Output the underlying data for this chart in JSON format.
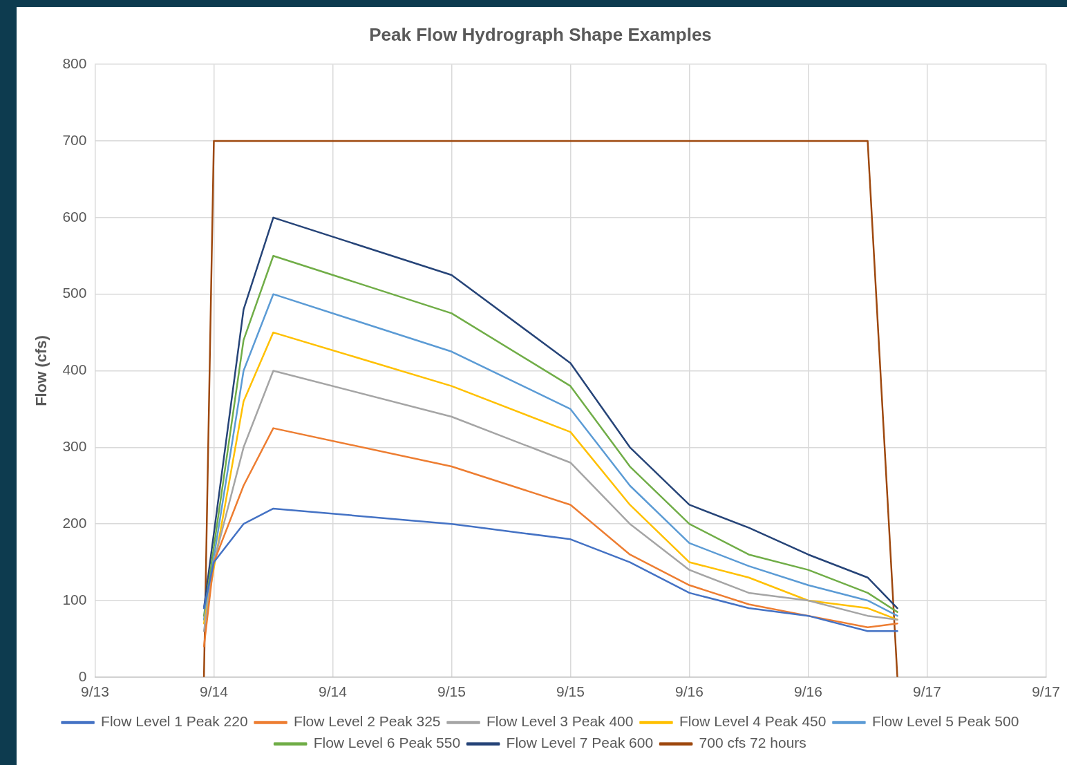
{
  "chart_data": {
    "type": "line",
    "title": "Peak Flow Hydrograph Shape Examples",
    "ylabel": "Flow (cfs)",
    "x": [
      "--09-13T23:00",
      "--09-14T00:00",
      "--09-14T03:00",
      "--09-14T06:00",
      "--09-15T00:00",
      "--09-15T12:00",
      "--09-15T18:00",
      "--09-16T00:00",
      "--09-16T06:00",
      "--09-16T12:00",
      "--09-16T18:00",
      "--09-16T21:00"
    ],
    "series": [
      {
        "name": "Flow Level 1 Peak 220",
        "color": "#4472c4",
        "values": [
          90,
          150,
          200,
          220,
          200,
          180,
          150,
          110,
          90,
          80,
          60,
          60
        ]
      },
      {
        "name": "Flow Level 2 Peak 325",
        "color": "#ed7d31",
        "values": [
          40,
          150,
          250,
          325,
          275,
          225,
          160,
          120,
          95,
          80,
          65,
          70
        ]
      },
      {
        "name": "Flow Level 3 Peak 400",
        "color": "#a5a5a5",
        "values": [
          60,
          150,
          300,
          400,
          340,
          280,
          200,
          140,
          110,
          100,
          80,
          75
        ]
      },
      {
        "name": "Flow Level 4 Peak 450",
        "color": "#ffc000",
        "values": [
          70,
          null,
          360,
          450,
          380,
          320,
          225,
          150,
          130,
          100,
          90,
          75
        ]
      },
      {
        "name": "Flow Level 5 Peak 500",
        "color": "#5b9bd5",
        "values": [
          75,
          null,
          400,
          500,
          425,
          350,
          250,
          175,
          145,
          120,
          100,
          80
        ]
      },
      {
        "name": "Flow Level 6 Peak 550",
        "color": "#70ad47",
        "values": [
          80,
          null,
          440,
          550,
          475,
          380,
          275,
          200,
          160,
          140,
          110,
          85
        ]
      },
      {
        "name": "Flow Level 7 Peak 600",
        "color": "#264478",
        "values": [
          90,
          null,
          480,
          600,
          525,
          410,
          300,
          225,
          195,
          160,
          130,
          90
        ]
      },
      {
        "name": "700 cfs 72 hours",
        "color": "#9e480e",
        "x": [
          "--09-13T23:00",
          "--09-14T00:00",
          "--09-16T18:00",
          "--09-16T21:00"
        ],
        "values": [
          0,
          700,
          700,
          0
        ]
      }
    ],
    "xlim": [
      "--09-13T12:00",
      "--09-17T12:00"
    ],
    "xticks": [
      {
        "value": "--09-13T12:00",
        "label": "9/13"
      },
      {
        "value": "--09-14T00:00",
        "label": "9/14"
      },
      {
        "value": "--09-14T12:00",
        "label": "9/14"
      },
      {
        "value": "--09-15T00:00",
        "label": "9/15"
      },
      {
        "value": "--09-15T12:00",
        "label": "9/15"
      },
      {
        "value": "--09-16T00:00",
        "label": "9/16"
      },
      {
        "value": "--09-16T12:00",
        "label": "9/16"
      },
      {
        "value": "--09-17T00:00",
        "label": "9/17"
      },
      {
        "value": "--09-17T12:00",
        "label": "9/17"
      }
    ],
    "ylim": [
      0,
      800
    ],
    "yticks": [
      0,
      100,
      200,
      300,
      400,
      500,
      600,
      700,
      800
    ],
    "grid": true,
    "legend": "bottom",
    "marker": "none",
    "line_style": "solid"
  }
}
